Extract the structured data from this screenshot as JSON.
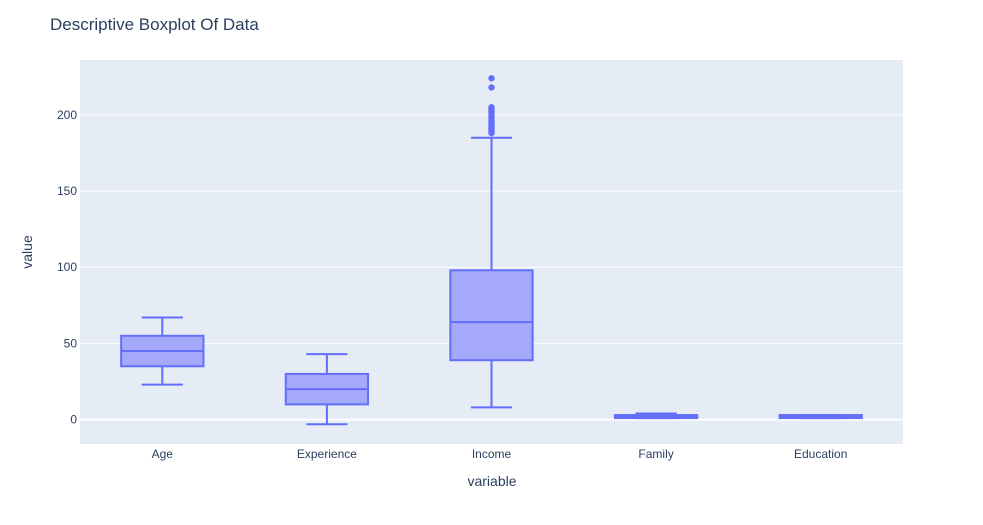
{
  "chart_data": {
    "type": "box",
    "title": "Descriptive Boxplot Of Data",
    "xlabel": "variable",
    "ylabel": "value",
    "ylim": [
      -16,
      236
    ],
    "yticks": [
      0,
      50,
      100,
      150,
      200
    ],
    "grid": true,
    "legend": "none",
    "colors": {
      "plot_bg": "#e5ecf6",
      "box_line": "#636efa",
      "box_fill": "#a4a9fb",
      "text": "#2a3f5f",
      "grid": "#ffffff"
    },
    "categories": [
      "Age",
      "Experience",
      "Income",
      "Family",
      "Education"
    ],
    "series": [
      {
        "boxes": [
          {
            "category": "Age",
            "lower_whisker": 23,
            "q1": 35,
            "median": 45,
            "q3": 55,
            "upper_whisker": 67,
            "outliers": []
          },
          {
            "category": "Experience",
            "lower_whisker": -3,
            "q1": 10,
            "median": 20,
            "q3": 30,
            "upper_whisker": 43,
            "outliers": []
          },
          {
            "category": "Income",
            "lower_whisker": 8,
            "q1": 39,
            "median": 64,
            "q3": 98,
            "upper_whisker": 185,
            "outliers": [
              188,
              189,
              190,
              191,
              192,
              193,
              194,
              195,
              196,
              198,
              199,
              200,
              201,
              202,
              203,
              204,
              205,
              218,
              224
            ]
          },
          {
            "category": "Family",
            "lower_whisker": 1,
            "q1": 1,
            "median": 2,
            "q3": 3,
            "upper_whisker": 4,
            "outliers": []
          },
          {
            "category": "Education",
            "lower_whisker": 1,
            "q1": 1,
            "median": 2,
            "q3": 3,
            "upper_whisker": 3,
            "outliers": []
          }
        ]
      }
    ]
  }
}
